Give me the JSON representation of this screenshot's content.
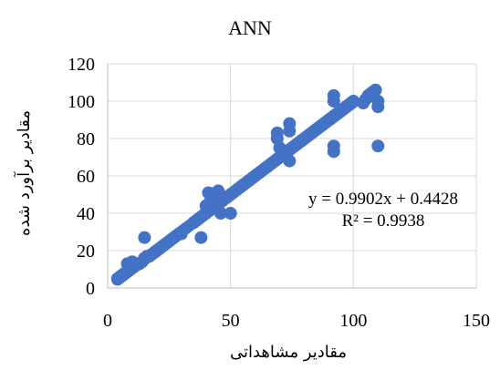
{
  "chart_data": {
    "type": "scatter",
    "title": "ANN",
    "xlabel": "مقادیر مشاهداتی",
    "ylabel": "مقادیر برآورد شده",
    "xlim": [
      0,
      150
    ],
    "ylim": [
      0,
      120
    ],
    "x_ticks": [
      "0",
      "50",
      "100",
      "150"
    ],
    "y_ticks": [
      "0",
      "20",
      "40",
      "60",
      "80",
      "100",
      "120"
    ],
    "grid": true,
    "series_color": "#4472C4",
    "trendline": {
      "slope": 0.9902,
      "intercept": 0.4428,
      "equation": "y = 0.9902x + 0.4428",
      "r2": "R² = 0.9938"
    },
    "points": [
      [
        4,
        5
      ],
      [
        5,
        6
      ],
      [
        6,
        7
      ],
      [
        7,
        8
      ],
      [
        8,
        9
      ],
      [
        9,
        10
      ],
      [
        10,
        11
      ],
      [
        11,
        12
      ],
      [
        12,
        13
      ],
      [
        13,
        13
      ],
      [
        14,
        14
      ],
      [
        15,
        16
      ],
      [
        16,
        17
      ],
      [
        17,
        17
      ],
      [
        18,
        18
      ],
      [
        19,
        19
      ],
      [
        20,
        20
      ],
      [
        21,
        21
      ],
      [
        22,
        22
      ],
      [
        23,
        23
      ],
      [
        24,
        24
      ],
      [
        25,
        25
      ],
      [
        26,
        26
      ],
      [
        27,
        27
      ],
      [
        28,
        28
      ],
      [
        29,
        29
      ],
      [
        30,
        29
      ],
      [
        8,
        13
      ],
      [
        10,
        14
      ],
      [
        15,
        27
      ],
      [
        35,
        35
      ],
      [
        36,
        36
      ],
      [
        37,
        37
      ],
      [
        38,
        38
      ],
      [
        39,
        39
      ],
      [
        40,
        40
      ],
      [
        41,
        41
      ],
      [
        42,
        42
      ],
      [
        43,
        43
      ],
      [
        44,
        44
      ],
      [
        45,
        45
      ],
      [
        46,
        46
      ],
      [
        47,
        47
      ],
      [
        48,
        48
      ],
      [
        49,
        49
      ],
      [
        50,
        50
      ],
      [
        38,
        27
      ],
      [
        40,
        44
      ],
      [
        41,
        51
      ],
      [
        42,
        48
      ],
      [
        44,
        51
      ],
      [
        45,
        52
      ],
      [
        46,
        40
      ],
      [
        50,
        40
      ],
      [
        51,
        51
      ],
      [
        52,
        52
      ],
      [
        53,
        53
      ],
      [
        54,
        54
      ],
      [
        55,
        55
      ],
      [
        56,
        56
      ],
      [
        57,
        57
      ],
      [
        58,
        58
      ],
      [
        59,
        59
      ],
      [
        60,
        60
      ],
      [
        61,
        61
      ],
      [
        62,
        62
      ],
      [
        63,
        63
      ],
      [
        64,
        64
      ],
      [
        65,
        65
      ],
      [
        66,
        66
      ],
      [
        67,
        67
      ],
      [
        68,
        68
      ],
      [
        69,
        69
      ],
      [
        70,
        70
      ],
      [
        71,
        71
      ],
      [
        72,
        72
      ],
      [
        69,
        80
      ],
      [
        69,
        83
      ],
      [
        70,
        75
      ],
      [
        72,
        72
      ],
      [
        73,
        73
      ],
      [
        74,
        74
      ],
      [
        74,
        88
      ],
      [
        74,
        84
      ],
      [
        74,
        68
      ],
      [
        75,
        75
      ],
      [
        76,
        76
      ],
      [
        77,
        77
      ],
      [
        78,
        78
      ],
      [
        79,
        79
      ],
      [
        80,
        80
      ],
      [
        81,
        81
      ],
      [
        82,
        82
      ],
      [
        83,
        83
      ],
      [
        84,
        84
      ],
      [
        85,
        85
      ],
      [
        86,
        86
      ],
      [
        87,
        87
      ],
      [
        88,
        88
      ],
      [
        89,
        89
      ],
      [
        90,
        90
      ],
      [
        91,
        91
      ],
      [
        92,
        92
      ],
      [
        92,
        103
      ],
      [
        92,
        100
      ],
      [
        92,
        73
      ],
      [
        92,
        76
      ],
      [
        93,
        93
      ],
      [
        94,
        94
      ],
      [
        95,
        95
      ],
      [
        96,
        96
      ],
      [
        97,
        97
      ],
      [
        98,
        98
      ],
      [
        99,
        99
      ],
      [
        100,
        100
      ],
      [
        105,
        101
      ],
      [
        106,
        103
      ],
      [
        107,
        104
      ],
      [
        108,
        105
      ],
      [
        109,
        106
      ],
      [
        110,
        100
      ],
      [
        110,
        97
      ],
      [
        110,
        76
      ],
      [
        104,
        99
      ]
    ]
  }
}
